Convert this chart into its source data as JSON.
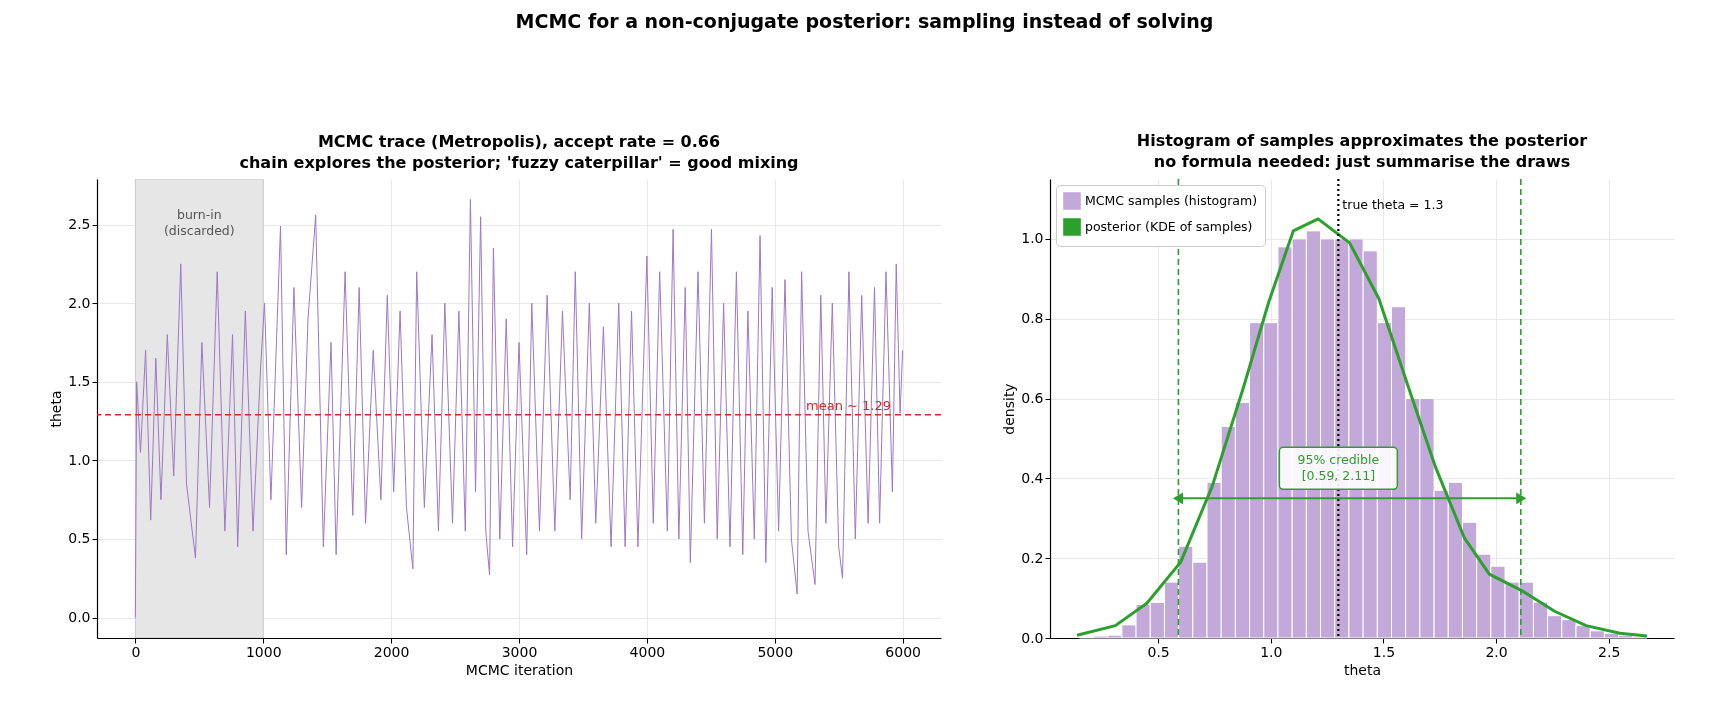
{
  "chart_data": [
    {
      "type": "other",
      "title": "MCMC for a non-conjugate posterior: sampling instead of solving"
    },
    {
      "type": "line",
      "title": "MCMC trace (Metropolis), accept rate = 0.66\nchain explores the posterior; 'fuzzy caterpillar' = good mixing",
      "xlabel": "MCMC iteration",
      "ylabel": "theta",
      "xlim": [
        -300,
        6300
      ],
      "ylim": [
        -0.13,
        2.79
      ],
      "xticks": [
        0,
        1000,
        2000,
        3000,
        4000,
        5000,
        6000
      ],
      "yticks": [
        {
          "value": 0,
          "label": "0.0"
        },
        0.5,
        {
          "value": 1,
          "label": "1.0"
        },
        1.5,
        {
          "value": 2,
          "label": "2.0"
        },
        2.5
      ],
      "grid": true,
      "series": [
        {
          "color": "#9d78c7",
          "x": [
            0,
            10,
            40,
            80,
            120,
            160,
            200,
            250,
            300,
            355,
            400,
            470,
            520,
            580,
            640,
            700,
            760,
            800,
            860,
            920,
            980,
            1010,
            1060,
            1135,
            1180,
            1240,
            1300,
            1350,
            1410,
            1470,
            1530,
            1570,
            1640,
            1700,
            1750,
            1800,
            1860,
            1920,
            1970,
            2020,
            2070,
            2120,
            2170,
            2200,
            2260,
            2320,
            2370,
            2420,
            2480,
            2530,
            2580,
            2620,
            2660,
            2700,
            2740,
            2770,
            2800,
            2850,
            2900,
            2950,
            3000,
            3060,
            3100,
            3160,
            3220,
            3280,
            3340,
            3400,
            3440,
            3490,
            3550,
            3600,
            3660,
            3720,
            3780,
            3830,
            3880,
            3930,
            4000,
            4050,
            4100,
            4160,
            4205,
            4250,
            4300,
            4340,
            4400,
            4450,
            4505,
            4550,
            4600,
            4650,
            4700,
            4750,
            4790,
            4840,
            4885,
            4930,
            4980,
            5030,
            5080,
            5130,
            5175,
            5210,
            5260,
            5315,
            5360,
            5400,
            5450,
            5500,
            5530,
            5580,
            5630,
            5680,
            5730,
            5780,
            5820,
            5870,
            5920,
            5950,
            5980,
            6000
          ],
          "values": [
            0.0,
            1.5,
            1.05,
            1.7,
            0.62,
            1.65,
            0.75,
            1.8,
            0.9,
            2.25,
            0.85,
            0.38,
            1.75,
            0.7,
            2.2,
            0.55,
            1.8,
            0.45,
            1.95,
            0.55,
            1.6,
            2.0,
            0.75,
            2.49,
            0.4,
            2.1,
            0.7,
            1.9,
            2.56,
            0.45,
            1.75,
            0.4,
            2.2,
            0.65,
            2.1,
            0.6,
            1.7,
            0.75,
            2.05,
            0.8,
            1.95,
            0.7,
            0.31,
            2.2,
            0.7,
            1.8,
            0.55,
            2.0,
            0.6,
            1.95,
            0.55,
            2.66,
            0.8,
            2.55,
            0.55,
            0.27,
            2.35,
            0.5,
            1.9,
            0.45,
            1.75,
            0.4,
            2.0,
            0.55,
            2.05,
            0.55,
            1.95,
            0.75,
            2.2,
            0.5,
            2.0,
            0.6,
            1.85,
            0.45,
            2.0,
            0.45,
            1.95,
            0.45,
            2.3,
            0.6,
            2.2,
            0.55,
            2.47,
            0.5,
            2.1,
            0.35,
            2.2,
            0.6,
            2.47,
            0.5,
            2.0,
            0.45,
            2.2,
            0.4,
            1.95,
            0.5,
            2.43,
            0.35,
            2.1,
            0.55,
            2.15,
            0.5,
            0.15,
            2.2,
            0.55,
            0.21,
            2.05,
            0.6,
            2.0,
            0.45,
            0.25,
            2.2,
            0.5,
            2.05,
            0.6,
            2.1,
            0.6,
            2.2,
            0.8,
            2.25,
            1.3,
            1.7
          ]
        }
      ],
      "ref_lines": [
        {
          "axis": "y",
          "value": 1.29,
          "label": "mean ~ 1.29",
          "color": "#d62728",
          "line_style": "dashed"
        }
      ],
      "bands": [
        {
          "axis": "x",
          "from": 0,
          "to": 1000,
          "label": "burn-in\n(discarded)",
          "color": "#e6e6e6"
        }
      ]
    },
    {
      "type": "histogram",
      "title": "Histogram of samples approximates the posterior\nno formula needed: just summarise the draws",
      "xlabel": "theta",
      "ylabel": "density",
      "xlim": [
        0.02,
        2.79
      ],
      "ylim": [
        0,
        1.15
      ],
      "xticks": [
        0.5,
        {
          "value": 1,
          "label": "1.0"
        },
        1.5,
        {
          "value": 2,
          "label": "2.0"
        },
        2.5
      ],
      "yticks": [
        {
          "value": 0,
          "label": "0.0"
        },
        0.2,
        0.4,
        0.6,
        0.8,
        {
          "value": 1,
          "label": "1.0"
        }
      ],
      "grid": true,
      "legend": "top left",
      "bins": [
        0.15,
        0.213,
        0.276,
        0.339,
        0.402,
        0.465,
        0.528,
        0.591,
        0.654,
        0.717,
        0.78,
        0.843,
        0.906,
        0.969,
        1.032,
        1.095,
        1.158,
        1.221,
        1.284,
        1.347,
        1.41,
        1.473,
        1.536,
        1.599,
        1.662,
        1.725,
        1.788,
        1.851,
        1.914,
        1.977,
        2.04,
        2.103,
        2.166,
        2.229,
        2.292,
        2.355,
        2.418,
        2.481,
        2.544,
        2.607,
        2.67
      ],
      "series": [
        {
          "name": "MCMC samples (histogram)",
          "color": "#c3a8da",
          "values": [
            0.002,
            0.005,
            0.007,
            0.033,
            0.084,
            0.089,
            0.14,
            0.23,
            0.19,
            0.39,
            0.53,
            0.59,
            0.79,
            0.79,
            0.98,
            1.0,
            1.02,
            1.0,
            1.0,
            1.0,
            0.97,
            0.79,
            0.83,
            0.6,
            0.6,
            0.37,
            0.39,
            0.29,
            0.21,
            0.18,
            0.14,
            0.14,
            0.09,
            0.056,
            0.046,
            0.031,
            0.018,
            0.012,
            0.007,
            0.003
          ]
        },
        {
          "name": "posterior (KDE of samples)",
          "type": "line",
          "color": "#2ca02c",
          "x": [
            0.14,
            0.31,
            0.45,
            0.6,
            0.74,
            0.88,
            0.99,
            1.1,
            1.21,
            1.35,
            1.48,
            1.61,
            1.73,
            1.86,
            1.97,
            2.11,
            2.26,
            2.4,
            2.55,
            2.67
          ],
          "values": [
            0.007,
            0.031,
            0.087,
            0.19,
            0.38,
            0.63,
            0.84,
            1.02,
            1.05,
            0.99,
            0.85,
            0.63,
            0.43,
            0.25,
            0.16,
            0.12,
            0.067,
            0.031,
            0.012,
            0.005
          ]
        }
      ],
      "ref_lines": [
        {
          "axis": "x",
          "value": 0.59,
          "color": "#2ca02c",
          "line_style": "dashed"
        },
        {
          "axis": "x",
          "value": 2.11,
          "color": "#2ca02c",
          "line_style": "dashed"
        },
        {
          "axis": "x",
          "value": 1.3,
          "label": "true theta = 1.3",
          "color": "#000000",
          "line_style": "dotted"
        }
      ],
      "annotations": [
        {
          "text": "95% credible\n[0.59, 2.11]",
          "x": 1.3,
          "y": 0.35
        }
      ]
    }
  ]
}
